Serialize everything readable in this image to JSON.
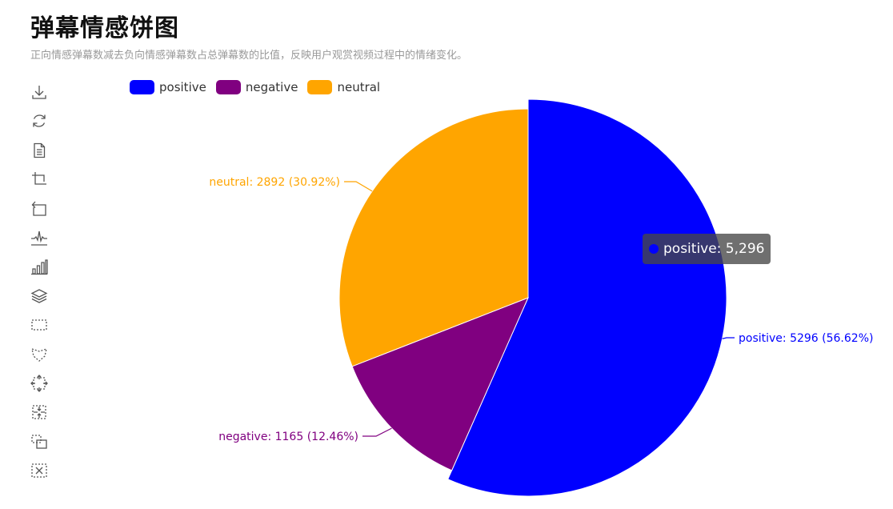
{
  "header": {
    "title": "弹幕情感饼图",
    "subtitle": "正向情感弹幕数减去负向情感弹幕数占总弹幕数的比值，反映用户观赏视频过程中的情绪变化。"
  },
  "toolbox": [
    {
      "name": "download-icon"
    },
    {
      "name": "refresh-icon"
    },
    {
      "name": "data-view-icon"
    },
    {
      "name": "restore-icon"
    },
    {
      "name": "undo-icon"
    },
    {
      "name": "line-chart-icon"
    },
    {
      "name": "bar-chart-icon"
    },
    {
      "name": "stack-icon"
    },
    {
      "name": "rect-select-icon"
    },
    {
      "name": "lasso-select-icon"
    },
    {
      "name": "zoom-in-icon"
    },
    {
      "name": "zoom-out-icon"
    },
    {
      "name": "keep-select-icon"
    },
    {
      "name": "clear-select-icon"
    }
  ],
  "tooltip": {
    "text": "positive: 5,296",
    "color": "#0000ff"
  },
  "chart_data": {
    "type": "pie",
    "legend_position": "top-left",
    "slices": [
      {
        "name": "positive",
        "value": 5296,
        "percent": "56.62%",
        "color": "#0000ff",
        "label": "positive: 5296 (56.62%)"
      },
      {
        "name": "negative",
        "value": 1165,
        "percent": "12.46%",
        "color": "#800080",
        "label": "negative: 1165 (12.46%)"
      },
      {
        "name": "neutral",
        "value": 2892,
        "percent": "30.92%",
        "color": "#ffa500",
        "label": "neutral: 2892 (30.92%)"
      }
    ]
  }
}
